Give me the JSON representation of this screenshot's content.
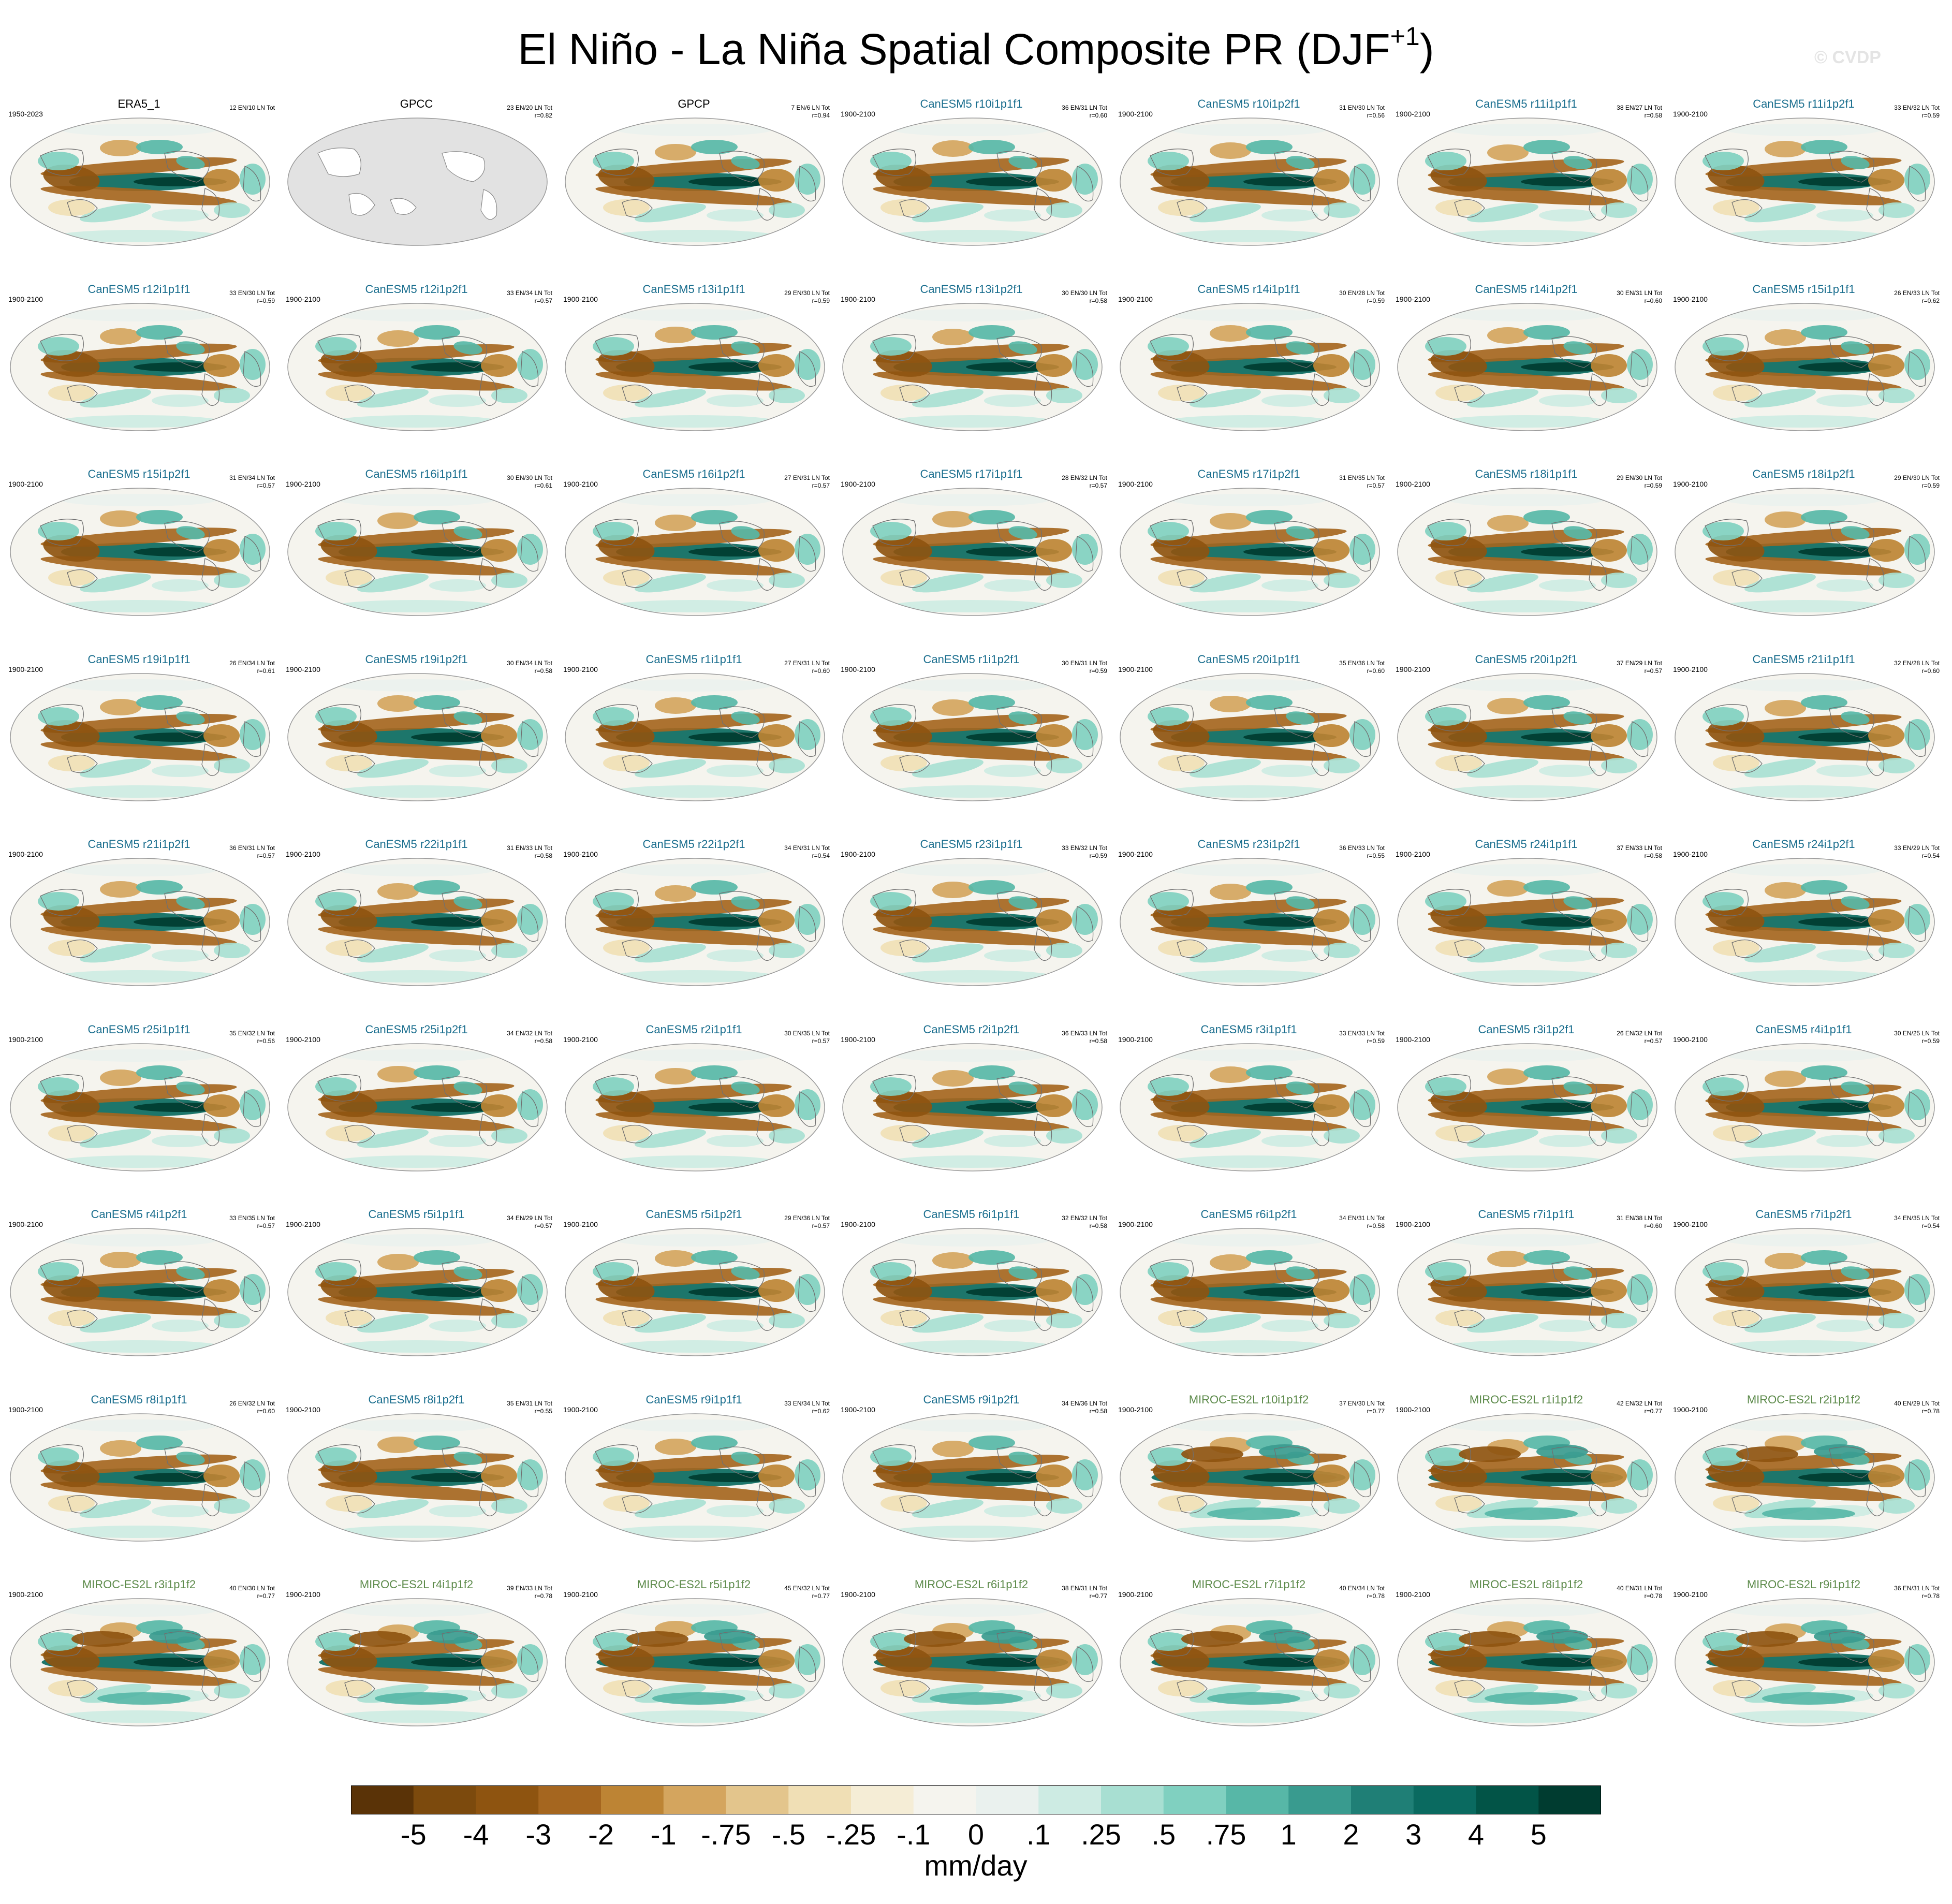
{
  "title": {
    "main": "El Niño - La Niña Spatial Composite PR (DJF",
    "superscript": "+1",
    "close": ")"
  },
  "watermark": "© CVDP",
  "colorbar": {
    "units": "mm/day",
    "labels": [
      "-5",
      "-4",
      "-3",
      "-2",
      "-1",
      "-.75",
      "-.5",
      "-.25",
      "-.1",
      "0",
      ".1",
      ".25",
      ".5",
      ".75",
      "1",
      "2",
      "3",
      "4",
      "5"
    ],
    "colors": [
      "#5a3307",
      "#7c4a0d",
      "#8e5410",
      "#a5661f",
      "#bd8434",
      "#d4a55e",
      "#e3c58c",
      "#f0dfb5",
      "#f5edd6",
      "#f5f4ee",
      "#eaf1ee",
      "#cdebe3",
      "#a8dfd2",
      "#80d0c0",
      "#57b7a7",
      "#399b8f",
      "#1f7f76",
      "#0a6a60",
      "#025447",
      "#003c30"
    ]
  },
  "colors": {
    "obs_title": "#000000",
    "canesm5_title": "#1a6e8e",
    "miroc_title": "#5c8a4a",
    "land": "#e0e0e0",
    "coast": "#707070"
  },
  "chart_data": {
    "type": "heatmap",
    "title": "El Niño - La Niña Spatial Composite PR (DJF+1)",
    "colorbar_label": "mm/day",
    "colorbar_ticks": [
      "-5",
      "-4",
      "-3",
      "-2",
      "-1",
      "-.75",
      "-.5",
      "-.25",
      "-.1",
      "0",
      ".1",
      ".25",
      ".5",
      ".75",
      "1",
      "2",
      "3",
      "4",
      "5"
    ],
    "layout": {
      "rows": 9,
      "cols": 7
    },
    "panels": [
      {
        "name": "ERA5_1",
        "period": "1950-2023",
        "counts": "12 EN/10 LN Tot",
        "r": "",
        "group": "obs",
        "pattern": "obs"
      },
      {
        "name": "GPCC",
        "period": "",
        "counts": "23 EN/20 LN Tot",
        "r": "r=0.82",
        "group": "obs",
        "pattern": "empty"
      },
      {
        "name": "GPCP",
        "period": "",
        "counts": "7 EN/6 LN Tot",
        "r": "r=0.94",
        "group": "obs",
        "pattern": "obs"
      },
      {
        "name": "CanESM5 r10i1p1f1",
        "period": "1900-2100",
        "counts": "36 EN/31 LN Tot",
        "r": "r=0.60",
        "group": "canesm5",
        "pattern": "model"
      },
      {
        "name": "CanESM5 r10i1p2f1",
        "period": "1900-2100",
        "counts": "31 EN/30 LN Tot",
        "r": "r=0.56",
        "group": "canesm5",
        "pattern": "model"
      },
      {
        "name": "CanESM5 r11i1p1f1",
        "period": "1900-2100",
        "counts": "38 EN/27 LN Tot",
        "r": "r=0.58",
        "group": "canesm5",
        "pattern": "model"
      },
      {
        "name": "CanESM5 r11i1p2f1",
        "period": "1900-2100",
        "counts": "33 EN/32 LN Tot",
        "r": "r=0.59",
        "group": "canesm5",
        "pattern": "model"
      },
      {
        "name": "CanESM5 r12i1p1f1",
        "period": "1900-2100",
        "counts": "33 EN/30 LN Tot",
        "r": "r=0.59",
        "group": "canesm5",
        "pattern": "model"
      },
      {
        "name": "CanESM5 r12i1p2f1",
        "period": "1900-2100",
        "counts": "33 EN/34 LN Tot",
        "r": "r=0.57",
        "group": "canesm5",
        "pattern": "model"
      },
      {
        "name": "CanESM5 r13i1p1f1",
        "period": "1900-2100",
        "counts": "29 EN/30 LN Tot",
        "r": "r=0.59",
        "group": "canesm5",
        "pattern": "model"
      },
      {
        "name": "CanESM5 r13i1p2f1",
        "period": "1900-2100",
        "counts": "30 EN/30 LN Tot",
        "r": "r=0.58",
        "group": "canesm5",
        "pattern": "model"
      },
      {
        "name": "CanESM5 r14i1p1f1",
        "period": "1900-2100",
        "counts": "30 EN/28 LN Tot",
        "r": "r=0.59",
        "group": "canesm5",
        "pattern": "model"
      },
      {
        "name": "CanESM5 r14i1p2f1",
        "period": "1900-2100",
        "counts": "30 EN/31 LN Tot",
        "r": "r=0.60",
        "group": "canesm5",
        "pattern": "model"
      },
      {
        "name": "CanESM5 r15i1p1f1",
        "period": "1900-2100",
        "counts": "26 EN/33 LN Tot",
        "r": "r=0.62",
        "group": "canesm5",
        "pattern": "model"
      },
      {
        "name": "CanESM5 r15i1p2f1",
        "period": "1900-2100",
        "counts": "31 EN/34 LN Tot",
        "r": "r=0.57",
        "group": "canesm5",
        "pattern": "model"
      },
      {
        "name": "CanESM5 r16i1p1f1",
        "period": "1900-2100",
        "counts": "30 EN/30 LN Tot",
        "r": "r=0.61",
        "group": "canesm5",
        "pattern": "model"
      },
      {
        "name": "CanESM5 r16i1p2f1",
        "period": "1900-2100",
        "counts": "27 EN/31 LN Tot",
        "r": "r=0.57",
        "group": "canesm5",
        "pattern": "model"
      },
      {
        "name": "CanESM5 r17i1p1f1",
        "period": "1900-2100",
        "counts": "28 EN/32 LN Tot",
        "r": "r=0.57",
        "group": "canesm5",
        "pattern": "model"
      },
      {
        "name": "CanESM5 r17i1p2f1",
        "period": "1900-2100",
        "counts": "31 EN/35 LN Tot",
        "r": "r=0.57",
        "group": "canesm5",
        "pattern": "model"
      },
      {
        "name": "CanESM5 r18i1p1f1",
        "period": "1900-2100",
        "counts": "29 EN/30 LN Tot",
        "r": "r=0.59",
        "group": "canesm5",
        "pattern": "model"
      },
      {
        "name": "CanESM5 r18i1p2f1",
        "period": "1900-2100",
        "counts": "29 EN/30 LN Tot",
        "r": "r=0.59",
        "group": "canesm5",
        "pattern": "model"
      },
      {
        "name": "CanESM5 r19i1p1f1",
        "period": "1900-2100",
        "counts": "26 EN/34 LN Tot",
        "r": "r=0.61",
        "group": "canesm5",
        "pattern": "model"
      },
      {
        "name": "CanESM5 r19i1p2f1",
        "period": "1900-2100",
        "counts": "30 EN/34 LN Tot",
        "r": "r=0.58",
        "group": "canesm5",
        "pattern": "model"
      },
      {
        "name": "CanESM5 r1i1p1f1",
        "period": "1900-2100",
        "counts": "27 EN/31 LN Tot",
        "r": "r=0.60",
        "group": "canesm5",
        "pattern": "model"
      },
      {
        "name": "CanESM5 r1i1p2f1",
        "period": "1900-2100",
        "counts": "30 EN/31 LN Tot",
        "r": "r=0.59",
        "group": "canesm5",
        "pattern": "model"
      },
      {
        "name": "CanESM5 r20i1p1f1",
        "period": "1900-2100",
        "counts": "35 EN/36 LN Tot",
        "r": "r=0.60",
        "group": "canesm5",
        "pattern": "model"
      },
      {
        "name": "CanESM5 r20i1p2f1",
        "period": "1900-2100",
        "counts": "37 EN/29 LN Tot",
        "r": "r=0.57",
        "group": "canesm5",
        "pattern": "model"
      },
      {
        "name": "CanESM5 r21i1p1f1",
        "period": "1900-2100",
        "counts": "32 EN/28 LN Tot",
        "r": "r=0.60",
        "group": "canesm5",
        "pattern": "model"
      },
      {
        "name": "CanESM5 r21i1p2f1",
        "period": "1900-2100",
        "counts": "36 EN/31 LN Tot",
        "r": "r=0.57",
        "group": "canesm5",
        "pattern": "model"
      },
      {
        "name": "CanESM5 r22i1p1f1",
        "period": "1900-2100",
        "counts": "31 EN/33 LN Tot",
        "r": "r=0.58",
        "group": "canesm5",
        "pattern": "model"
      },
      {
        "name": "CanESM5 r22i1p2f1",
        "period": "1900-2100",
        "counts": "34 EN/31 LN Tot",
        "r": "r=0.54",
        "group": "canesm5",
        "pattern": "model"
      },
      {
        "name": "CanESM5 r23i1p1f1",
        "period": "1900-2100",
        "counts": "33 EN/32 LN Tot",
        "r": "r=0.59",
        "group": "canesm5",
        "pattern": "model"
      },
      {
        "name": "CanESM5 r23i1p2f1",
        "period": "1900-2100",
        "counts": "36 EN/33 LN Tot",
        "r": "r=0.55",
        "group": "canesm5",
        "pattern": "model"
      },
      {
        "name": "CanESM5 r24i1p1f1",
        "period": "1900-2100",
        "counts": "37 EN/33 LN Tot",
        "r": "r=0.58",
        "group": "canesm5",
        "pattern": "model"
      },
      {
        "name": "CanESM5 r24i1p2f1",
        "period": "1900-2100",
        "counts": "33 EN/29 LN Tot",
        "r": "r=0.54",
        "group": "canesm5",
        "pattern": "model"
      },
      {
        "name": "CanESM5 r25i1p1f1",
        "period": "1900-2100",
        "counts": "35 EN/32 LN Tot",
        "r": "r=0.56",
        "group": "canesm5",
        "pattern": "model"
      },
      {
        "name": "CanESM5 r25i1p2f1",
        "period": "1900-2100",
        "counts": "34 EN/32 LN Tot",
        "r": "r=0.58",
        "group": "canesm5",
        "pattern": "model"
      },
      {
        "name": "CanESM5 r2i1p1f1",
        "period": "1900-2100",
        "counts": "30 EN/35 LN Tot",
        "r": "r=0.57",
        "group": "canesm5",
        "pattern": "model"
      },
      {
        "name": "CanESM5 r2i1p2f1",
        "period": "1900-2100",
        "counts": "36 EN/33 LN Tot",
        "r": "r=0.58",
        "group": "canesm5",
        "pattern": "model"
      },
      {
        "name": "CanESM5 r3i1p1f1",
        "period": "1900-2100",
        "counts": "33 EN/33 LN Tot",
        "r": "r=0.59",
        "group": "canesm5",
        "pattern": "model"
      },
      {
        "name": "CanESM5 r3i1p2f1",
        "period": "1900-2100",
        "counts": "26 EN/32 LN Tot",
        "r": "r=0.57",
        "group": "canesm5",
        "pattern": "model"
      },
      {
        "name": "CanESM5 r4i1p1f1",
        "period": "1900-2100",
        "counts": "30 EN/25 LN Tot",
        "r": "r=0.59",
        "group": "canesm5",
        "pattern": "model"
      },
      {
        "name": "CanESM5 r4i1p2f1",
        "period": "1900-2100",
        "counts": "33 EN/35 LN Tot",
        "r": "r=0.57",
        "group": "canesm5",
        "pattern": "model"
      },
      {
        "name": "CanESM5 r5i1p1f1",
        "period": "1900-2100",
        "counts": "34 EN/29 LN Tot",
        "r": "r=0.57",
        "group": "canesm5",
        "pattern": "model"
      },
      {
        "name": "CanESM5 r5i1p2f1",
        "period": "1900-2100",
        "counts": "29 EN/36 LN Tot",
        "r": "r=0.57",
        "group": "canesm5",
        "pattern": "model"
      },
      {
        "name": "CanESM5 r6i1p1f1",
        "period": "1900-2100",
        "counts": "32 EN/32 LN Tot",
        "r": "r=0.58",
        "group": "canesm5",
        "pattern": "model"
      },
      {
        "name": "CanESM5 r6i1p2f1",
        "period": "1900-2100",
        "counts": "34 EN/31 LN Tot",
        "r": "r=0.58",
        "group": "canesm5",
        "pattern": "model"
      },
      {
        "name": "CanESM5 r7i1p1f1",
        "period": "1900-2100",
        "counts": "31 EN/38 LN Tot",
        "r": "r=0.60",
        "group": "canesm5",
        "pattern": "model"
      },
      {
        "name": "CanESM5 r7i1p2f1",
        "period": "1900-2100",
        "counts": "34 EN/35 LN Tot",
        "r": "r=0.54",
        "group": "canesm5",
        "pattern": "model"
      },
      {
        "name": "CanESM5 r8i1p1f1",
        "period": "1900-2100",
        "counts": "26 EN/32 LN Tot",
        "r": "r=0.60",
        "group": "canesm5",
        "pattern": "model"
      },
      {
        "name": "CanESM5 r8i1p2f1",
        "period": "1900-2100",
        "counts": "35 EN/31 LN Tot",
        "r": "r=0.55",
        "group": "canesm5",
        "pattern": "model"
      },
      {
        "name": "CanESM5 r9i1p1f1",
        "period": "1900-2100",
        "counts": "33 EN/34 LN Tot",
        "r": "r=0.62",
        "group": "canesm5",
        "pattern": "model"
      },
      {
        "name": "CanESM5 r9i1p2f1",
        "period": "1900-2100",
        "counts": "34 EN/36 LN Tot",
        "r": "r=0.58",
        "group": "canesm5",
        "pattern": "model"
      },
      {
        "name": "MIROC-ES2L r10i1p1f2",
        "period": "1900-2100",
        "counts": "37 EN/30 LN Tot",
        "r": "r=0.77",
        "group": "miroc",
        "pattern": "miroc"
      },
      {
        "name": "MIROC-ES2L r1i1p1f2",
        "period": "1900-2100",
        "counts": "42 EN/32 LN Tot",
        "r": "r=0.77",
        "group": "miroc",
        "pattern": "miroc"
      },
      {
        "name": "MIROC-ES2L r2i1p1f2",
        "period": "1900-2100",
        "counts": "40 EN/29 LN Tot",
        "r": "r=0.78",
        "group": "miroc",
        "pattern": "miroc"
      },
      {
        "name": "MIROC-ES2L r3i1p1f2",
        "period": "1900-2100",
        "counts": "40 EN/30 LN Tot",
        "r": "r=0.77",
        "group": "miroc",
        "pattern": "miroc"
      },
      {
        "name": "MIROC-ES2L r4i1p1f2",
        "period": "1900-2100",
        "counts": "39 EN/33 LN Tot",
        "r": "r=0.78",
        "group": "miroc",
        "pattern": "miroc"
      },
      {
        "name": "MIROC-ES2L r5i1p1f2",
        "period": "1900-2100",
        "counts": "45 EN/32 LN Tot",
        "r": "r=0.77",
        "group": "miroc",
        "pattern": "miroc"
      },
      {
        "name": "MIROC-ES2L r6i1p1f2",
        "period": "1900-2100",
        "counts": "38 EN/31 LN Tot",
        "r": "r=0.77",
        "group": "miroc",
        "pattern": "miroc"
      },
      {
        "name": "MIROC-ES2L r7i1p1f2",
        "period": "1900-2100",
        "counts": "40 EN/34 LN Tot",
        "r": "r=0.78",
        "group": "miroc",
        "pattern": "miroc"
      },
      {
        "name": "MIROC-ES2L r8i1p1f2",
        "period": "1900-2100",
        "counts": "40 EN/31 LN Tot",
        "r": "r=0.78",
        "group": "miroc",
        "pattern": "miroc"
      },
      {
        "name": "MIROC-ES2L r9i1p1f2",
        "period": "1900-2100",
        "counts": "36 EN/31 LN Tot",
        "r": "r=0.78",
        "group": "miroc",
        "pattern": "miroc"
      }
    ]
  }
}
